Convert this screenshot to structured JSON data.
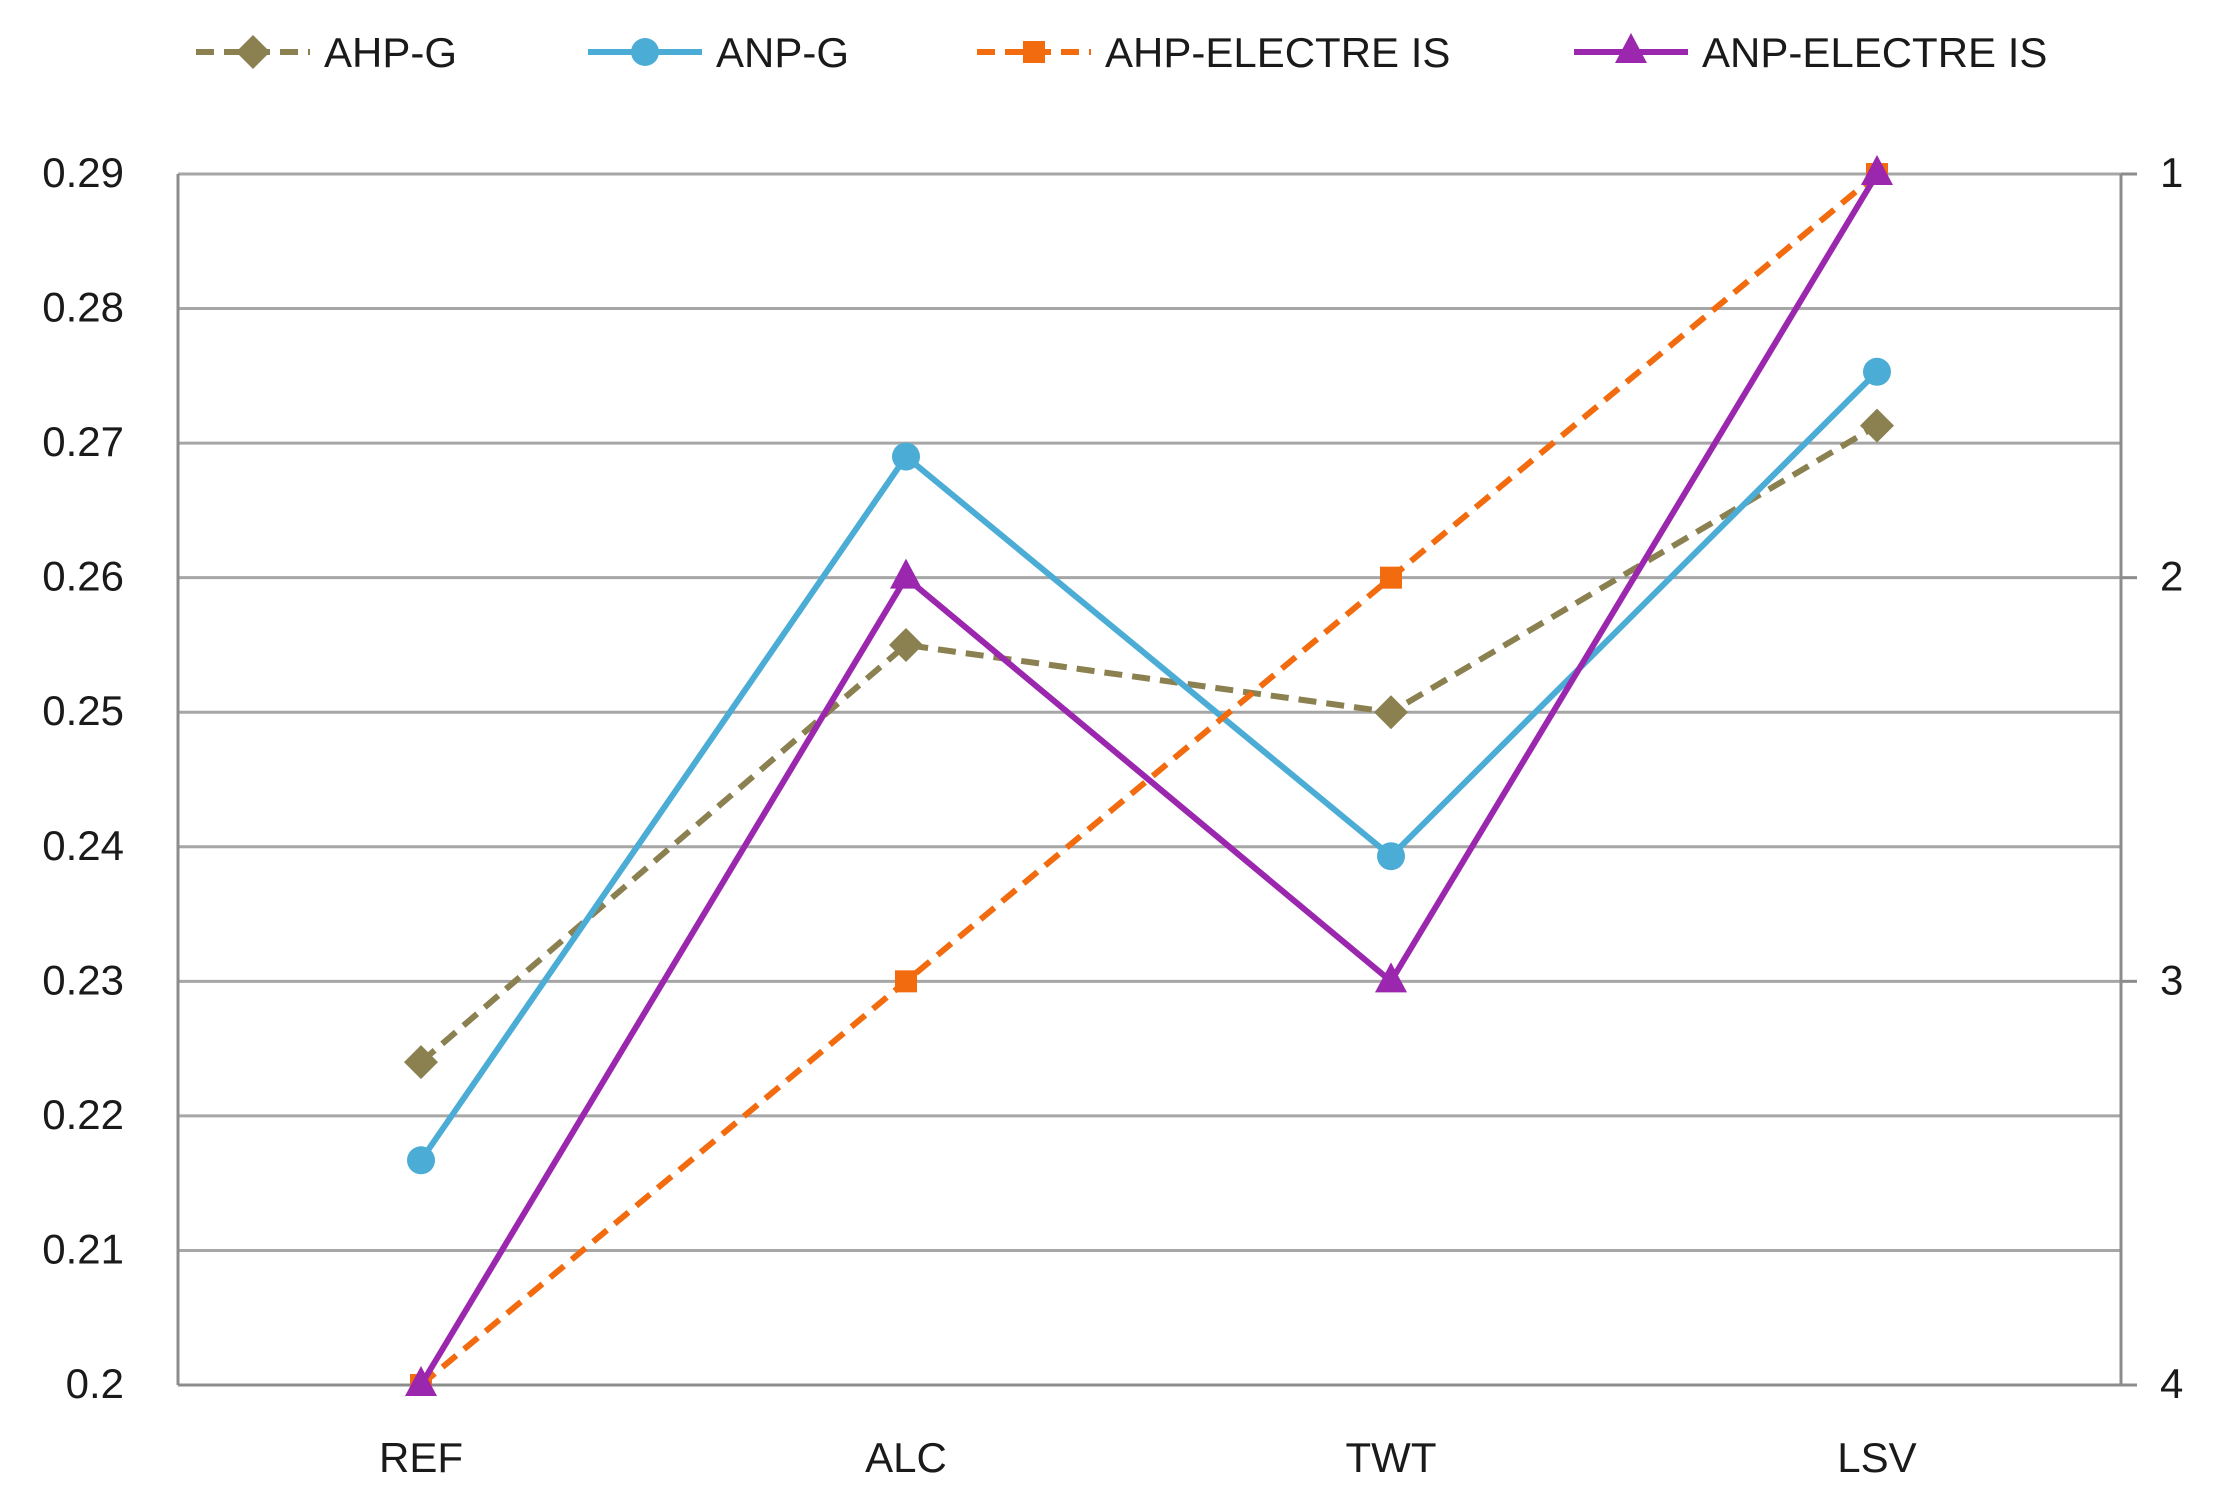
{
  "chart_data": {
    "type": "line",
    "title": "",
    "xlabel": "",
    "ylabel": "",
    "categories": [
      "REF",
      "ALC",
      "TWT",
      "LSV"
    ],
    "ylim": [
      0.2,
      0.29
    ],
    "ytick_labels": [
      "0.2",
      "0.21",
      "0.22",
      "0.23",
      "0.24",
      "0.25",
      "0.26",
      "0.27",
      "0.28",
      "0.29"
    ],
    "y2lim": [
      1,
      4
    ],
    "y2tick_labels": [
      "1",
      "2",
      "3",
      "4"
    ],
    "y2_reversed": true,
    "grid": true,
    "legend_position": "top",
    "series": [
      {
        "name": "AHP-G",
        "axis": "left",
        "marker": "diamond",
        "dashed": true,
        "color": "#8B8050",
        "values": [
          0.224,
          0.255,
          0.25,
          0.2713
        ]
      },
      {
        "name": "ANP-G",
        "axis": "left",
        "marker": "circle",
        "dashed": false,
        "color": "#4BACD6",
        "values": [
          0.2167,
          0.269,
          0.2393,
          0.2753
        ]
      },
      {
        "name": "AHP-ELECTRE IS",
        "axis": "right",
        "marker": "square",
        "dashed": true,
        "color": "#F26B0F",
        "values": [
          4,
          3,
          2,
          1
        ]
      },
      {
        "name": "ANP-ELECTRE IS",
        "axis": "right",
        "marker": "triangle",
        "dashed": false,
        "color": "#9B27AF",
        "values": [
          4,
          2,
          3,
          1
        ]
      }
    ]
  }
}
